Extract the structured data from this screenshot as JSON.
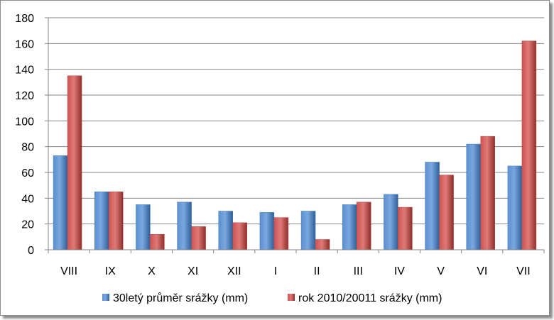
{
  "chart_data": {
    "type": "bar",
    "categories": [
      "VIII",
      "IX",
      "X",
      "XI",
      "XII",
      "I",
      "II",
      "III",
      "IV",
      "V",
      "VI",
      "VII"
    ],
    "series": [
      {
        "name": "30letý průměr srážky (mm)",
        "values": [
          73,
          45,
          35,
          37,
          30,
          29,
          30,
          35,
          43,
          68,
          82,
          65
        ],
        "color": "#4a7ebb"
      },
      {
        "name": "rok 2010/20011 srážky (mm)",
        "values": [
          135,
          45,
          12,
          18,
          21,
          25,
          8,
          37,
          33,
          58,
          88,
          162
        ],
        "color": "#be4b48"
      }
    ],
    "yticks": [
      "0",
      "20",
      "40",
      "60",
      "80",
      "100",
      "120",
      "140",
      "160",
      "180"
    ],
    "ylim": [
      0,
      180
    ],
    "grid": true,
    "legend_position": "bottom"
  }
}
